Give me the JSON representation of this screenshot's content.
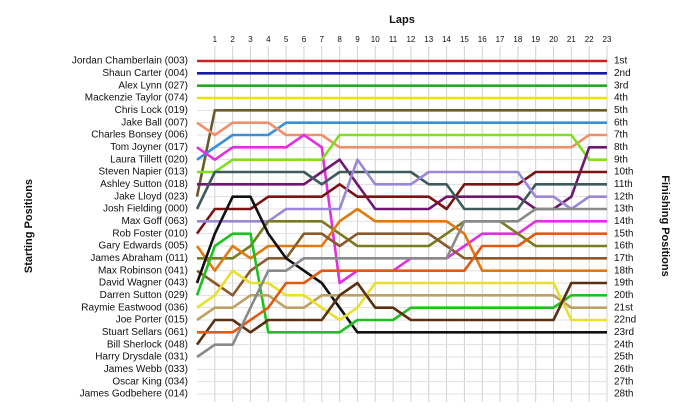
{
  "chart_data": {
    "type": "lapchart",
    "x_label": "Laps",
    "y_label": "Starting Positions",
    "y2_label": "Finishing Positions",
    "x": [
      0,
      1,
      2,
      3,
      4,
      5,
      6,
      7,
      8,
      9,
      10,
      11,
      12,
      13,
      14,
      15,
      16,
      17,
      18,
      19,
      20,
      21,
      22,
      23
    ],
    "xlim": [
      0,
      23
    ],
    "xticks": [
      1,
      2,
      3,
      4,
      5,
      6,
      7,
      8,
      9,
      10,
      11,
      12,
      13,
      14,
      15,
      16,
      17,
      18,
      19,
      20,
      21,
      22,
      23
    ],
    "ylim": [
      1,
      28
    ],
    "grid": true,
    "start_labels": [
      "Jordan Chamberlain (003)",
      "Shaun Carter (004)",
      "Alex Lynn (027)",
      "Mackenzie Taylor (074)",
      "Chris Lock (019)",
      "Jake Ball (007)",
      "Charles Bonsey (006)",
      "Tom Joyner (017)",
      "Laura Tillett (020)",
      "Steven Napier (013)",
      "Ashley Sutton (018)",
      "Jake Lloyd (023)",
      "Josh Fielding (000)",
      "Max Goff (063)",
      "Rob Foster (010)",
      "Gary Edwards (005)",
      "James Abraham (011)",
      "Max Robinson (041)",
      "David Wagner (043)",
      "Darren Sutton (029)",
      "Raymie Eastwood (036)",
      "Joe Porter (015)",
      "Stuart Sellars (061)",
      "Bill Sherlock (048)",
      "Harry Drysdale (031)",
      "James Webb (033)",
      "Oscar King (034)",
      "James Godbehere (014)"
    ],
    "yticks": [
      {
        "value": 1,
        "label": "1st"
      },
      {
        "value": 2,
        "label": "2nd"
      },
      {
        "value": 3,
        "label": "3rd"
      },
      {
        "value": 4,
        "label": "4th"
      },
      {
        "value": 5,
        "label": "5th"
      },
      {
        "value": 6,
        "label": "6th"
      },
      {
        "value": 7,
        "label": "7th"
      },
      {
        "value": 8,
        "label": "8th"
      },
      {
        "value": 9,
        "label": "9th"
      },
      {
        "value": 10,
        "label": "10th"
      },
      {
        "value": 11,
        "label": "11th"
      },
      {
        "value": 12,
        "label": "12th"
      },
      {
        "value": 13,
        "label": "13th"
      },
      {
        "value": 14,
        "label": "14th"
      },
      {
        "value": 15,
        "label": "15th"
      },
      {
        "value": 16,
        "label": "16th"
      },
      {
        "value": 17,
        "label": "17th"
      },
      {
        "value": 18,
        "label": "18th"
      },
      {
        "value": 19,
        "label": "19th"
      },
      {
        "value": 20,
        "label": "20th"
      },
      {
        "value": 21,
        "label": "21st"
      },
      {
        "value": 22,
        "label": "22nd"
      },
      {
        "value": 23,
        "label": "23rd"
      },
      {
        "value": 24,
        "label": "24th"
      },
      {
        "value": 25,
        "label": "25th"
      },
      {
        "value": 26,
        "label": "26th"
      },
      {
        "value": 27,
        "label": "27th"
      },
      {
        "value": 28,
        "label": "28th"
      }
    ],
    "series": [
      {
        "color": "#cc2222",
        "values": [
          1,
          1,
          1,
          1,
          1,
          1,
          1,
          1,
          1,
          1,
          1,
          1,
          1,
          1,
          1,
          1,
          1,
          1,
          1,
          1,
          1,
          1,
          1,
          1
        ]
      },
      {
        "color": "#1a1aa0",
        "values": [
          2,
          2,
          2,
          2,
          2,
          2,
          2,
          2,
          2,
          2,
          2,
          2,
          2,
          2,
          2,
          2,
          2,
          2,
          2,
          2,
          2,
          2,
          2,
          2
        ]
      },
      {
        "color": "#22aa22",
        "values": [
          3,
          3,
          3,
          3,
          3,
          3,
          3,
          3,
          3,
          3,
          3,
          3,
          3,
          3,
          3,
          3,
          3,
          3,
          3,
          3,
          3,
          3,
          3,
          3
        ]
      },
      {
        "color": "#e6e600",
        "values": [
          4,
          4,
          4,
          4,
          4,
          4,
          4,
          4,
          4,
          4,
          4,
          4,
          4,
          4,
          4,
          4,
          4,
          4,
          4,
          4,
          4,
          4,
          4,
          4
        ]
      },
      {
        "color": "#6b5a2a",
        "values": [
          12,
          5,
          5,
          5,
          5,
          5,
          5,
          5,
          5,
          5,
          5,
          5,
          5,
          5,
          5,
          5,
          5,
          5,
          5,
          5,
          5,
          5,
          5,
          5
        ]
      },
      {
        "color": "#3b8fd6",
        "values": [
          9,
          8,
          7,
          7,
          7,
          6,
          6,
          6,
          6,
          6,
          6,
          6,
          6,
          6,
          6,
          6,
          6,
          6,
          6,
          6,
          6,
          6,
          6,
          6
        ]
      },
      {
        "color": "#f0906a",
        "values": [
          6,
          7,
          6,
          6,
          6,
          7,
          7,
          7,
          8,
          8,
          8,
          8,
          8,
          8,
          8,
          8,
          8,
          8,
          8,
          8,
          8,
          8,
          7,
          7
        ]
      },
      {
        "color": "#e030e0",
        "values": [
          8,
          9,
          8,
          8,
          8,
          8,
          7,
          8,
          19,
          18,
          18,
          18,
          17,
          17,
          17,
          16,
          15,
          15,
          15,
          14,
          14,
          14,
          14,
          14
        ]
      },
      {
        "color": "#80e020",
        "values": [
          10,
          10,
          9,
          9,
          9,
          9,
          9,
          9,
          7,
          7,
          7,
          7,
          7,
          7,
          7,
          7,
          7,
          7,
          7,
          7,
          7,
          7,
          9,
          9
        ]
      },
      {
        "color": "#701870",
        "values": [
          11,
          11,
          11,
          11,
          11,
          11,
          11,
          10,
          9,
          11,
          13,
          13,
          13,
          13,
          12,
          12,
          12,
          12,
          12,
          13,
          13,
          12,
          8,
          8
        ]
      },
      {
        "color": "#7a1414",
        "values": [
          15,
          13,
          13,
          13,
          12,
          12,
          12,
          12,
          11,
          12,
          12,
          12,
          12,
          12,
          13,
          11,
          11,
          11,
          11,
          10,
          10,
          10,
          10,
          10
        ]
      },
      {
        "color": "#3e5a5a",
        "values": [
          13,
          10,
          10,
          10,
          10,
          10,
          10,
          11,
          10,
          10,
          10,
          10,
          10,
          11,
          11,
          13,
          13,
          13,
          13,
          11,
          11,
          11,
          11,
          11
        ]
      },
      {
        "color": "#9b87d8",
        "values": [
          14,
          14,
          14,
          14,
          14,
          13,
          13,
          13,
          13,
          9,
          11,
          11,
          11,
          10,
          10,
          10,
          10,
          10,
          10,
          12,
          12,
          13,
          12,
          12
        ]
      },
      {
        "color": "#7a7a20",
        "values": [
          17,
          17,
          17,
          16,
          14,
          14,
          14,
          14,
          15,
          16,
          16,
          16,
          16,
          16,
          15,
          14,
          14,
          14,
          15,
          16,
          16,
          16,
          16,
          16
        ]
      },
      {
        "color": "#e07a10",
        "values": [
          16,
          18,
          16,
          17,
          16,
          16,
          16,
          16,
          14,
          13,
          14,
          14,
          14,
          14,
          14,
          15,
          18,
          18,
          18,
          18,
          18,
          18,
          18,
          18
        ]
      },
      {
        "color": "#8b5a2b",
        "values": [
          18,
          19,
          20,
          18,
          17,
          17,
          15,
          15,
          16,
          15,
          15,
          15,
          15,
          15,
          16,
          17,
          17,
          17,
          17,
          17,
          17,
          17,
          17,
          17
        ]
      },
      {
        "color": "#111111",
        "values": [
          19,
          15,
          12,
          12,
          15,
          17,
          18,
          19,
          21,
          23,
          23,
          23,
          23,
          23,
          23,
          23,
          23,
          23,
          23,
          23,
          23,
          23,
          23,
          23
        ]
      },
      {
        "color": "#20c020",
        "values": [
          20,
          16,
          15,
          15,
          23,
          23,
          23,
          23,
          23,
          22,
          22,
          22,
          21,
          21,
          21,
          21,
          21,
          21,
          21,
          21,
          21,
          20,
          20,
          20
        ]
      },
      {
        "color": "#c0a060",
        "values": [
          22,
          21,
          21,
          20,
          20,
          21,
          21,
          20,
          20,
          20,
          20,
          20,
          20,
          20,
          20,
          20,
          20,
          20,
          20,
          20,
          20,
          21,
          21,
          21
        ]
      },
      {
        "color": "#e8e030",
        "values": [
          21,
          20,
          18,
          19,
          19,
          20,
          20,
          21,
          22,
          21,
          19,
          19,
          19,
          19,
          19,
          19,
          19,
          19,
          19,
          19,
          19,
          22,
          22,
          22
        ]
      },
      {
        "color": "#5a3010",
        "values": [
          24,
          22,
          22,
          23,
          22,
          22,
          22,
          22,
          20,
          19,
          21,
          21,
          22,
          22,
          22,
          22,
          22,
          22,
          22,
          22,
          22,
          19,
          19,
          19
        ]
      },
      {
        "color": "#e05a10",
        "values": [
          23,
          23,
          23,
          22,
          21,
          19,
          19,
          18,
          18,
          18,
          18,
          18,
          18,
          18,
          18,
          18,
          16,
          16,
          16,
          15,
          15,
          15,
          15,
          15
        ]
      },
      {
        "color": "#8a8a8a",
        "values": [
          25,
          24,
          24,
          21,
          18,
          18,
          17,
          17,
          17,
          17,
          17,
          17,
          17,
          17,
          17,
          14,
          14,
          14,
          14,
          13,
          13,
          13,
          13,
          13
        ]
      }
    ]
  }
}
